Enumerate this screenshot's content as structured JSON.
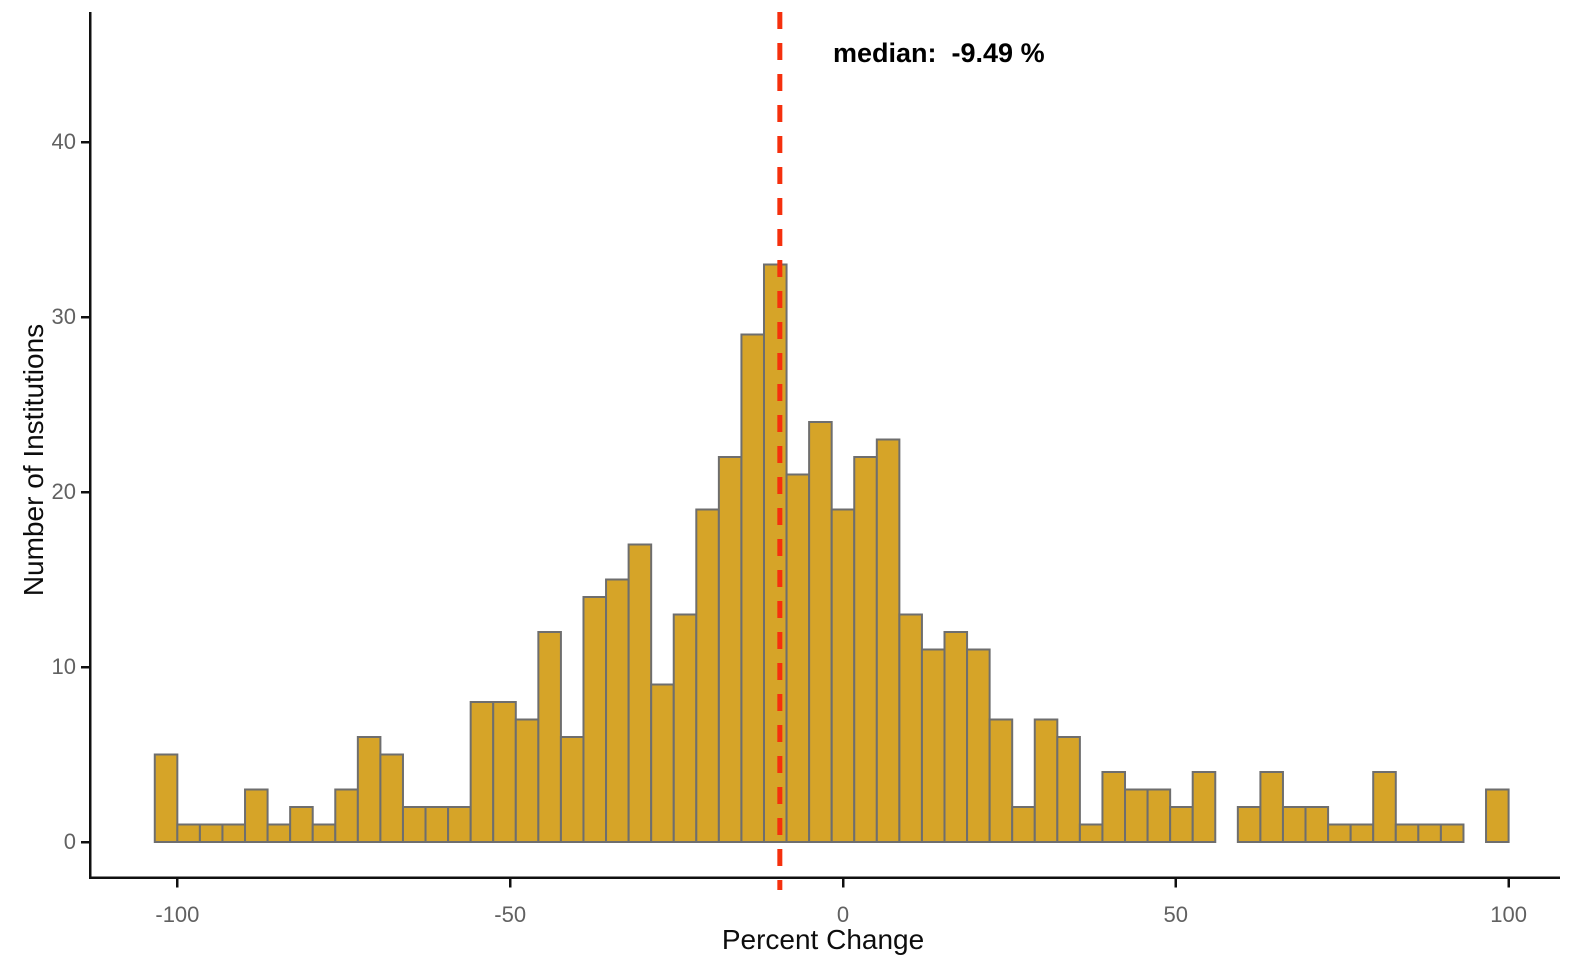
{
  "annotation": {
    "median_label": "median:  -9.49 %"
  },
  "x_axis": {
    "title": "Percent Change",
    "ticks": [
      "-100",
      "-50",
      "0",
      "50",
      "100"
    ],
    "tick_values": [
      -100,
      -50,
      0,
      50,
      100
    ]
  },
  "y_axis": {
    "title": "Number of Institutions",
    "ticks": [
      "0",
      "10",
      "20",
      "30",
      "40"
    ],
    "tick_values": [
      0,
      10,
      20,
      30,
      40
    ]
  },
  "colors": {
    "bar_fill": "#D6A428",
    "bar_stroke": "#6E6E6E",
    "median_line": "#F5300D",
    "axis_line": "#101010",
    "tick_label": "#616161"
  },
  "chart_data": {
    "type": "bar",
    "subtype": "histogram",
    "title": "",
    "xlabel": "Percent Change",
    "ylabel": "Number of Institutions",
    "bin_start": -103.4,
    "bin_width": 3.39,
    "counts": [
      5,
      1,
      1,
      1,
      3,
      1,
      2,
      1,
      3,
      6,
      5,
      2,
      2,
      2,
      8,
      8,
      7,
      12,
      6,
      14,
      15,
      17,
      9,
      13,
      19,
      22,
      29,
      33,
      21,
      24,
      19,
      22,
      23,
      13,
      11,
      12,
      11,
      7,
      2,
      7,
      6,
      1,
      4,
      3,
      3,
      2,
      4,
      0,
      2,
      4,
      2,
      2,
      1,
      1,
      4,
      1,
      1,
      1,
      0,
      3
    ],
    "median": -9.49,
    "xlim": [
      -113,
      108
    ],
    "ylim": [
      0,
      47.5
    ],
    "grid": "off",
    "legend": "none"
  }
}
